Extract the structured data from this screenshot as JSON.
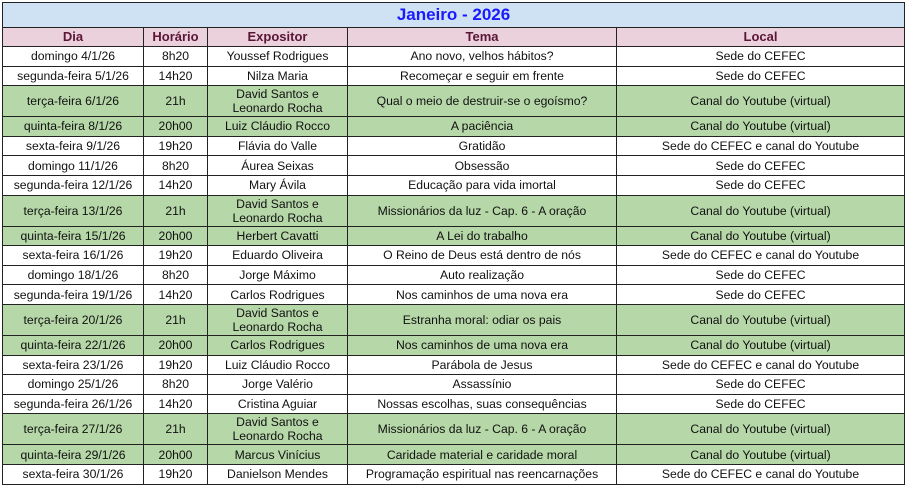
{
  "title": "Janeiro - 2026",
  "headers": {
    "dia": "Dia",
    "horario": "Horário",
    "expositor": "Expositor",
    "tema": "Tema",
    "local": "Local"
  },
  "colors": {
    "title_bg": "#cfe2f3",
    "title_text": "#1a1aff",
    "header_bg": "#ead1dc",
    "highlight_row": "#b6d7a8"
  },
  "rows": [
    {
      "dia": "domingo 4/1/26",
      "horario": "8h20",
      "expositor": "Youssef Rodrigues",
      "tema": "Ano novo, velhos hábitos?",
      "local": "Sede do CEFEC",
      "highlight": false
    },
    {
      "dia": "segunda-feira 5/1/26",
      "horario": "14h20",
      "expositor": "Nilza Maria",
      "tema": "Recomeçar e seguir em frente",
      "local": "Sede do CEFEC",
      "highlight": false
    },
    {
      "dia": "terça-feira 6/1/26",
      "horario": "21h",
      "expositor": "David Santos e Leonardo Rocha",
      "tema": "Qual o meio de destruir-se o egoísmo?",
      "local": "Canal do Youtube (virtual)",
      "highlight": true
    },
    {
      "dia": "quinta-feira 8/1/26",
      "horario": "20h00",
      "expositor": "Luiz Cláudio Rocco",
      "tema": "A paciência",
      "local": "Canal do Youtube (virtual)",
      "highlight": true
    },
    {
      "dia": "sexta-feira 9/1/26",
      "horario": "19h20",
      "expositor": "Flávia do Valle",
      "tema": "Gratidão",
      "local": "Sede do CEFEC e canal do Youtube",
      "highlight": false
    },
    {
      "dia": "domingo 11/1/26",
      "horario": "8h20",
      "expositor": "Áurea Seixas",
      "tema": "Obsessão",
      "local": "Sede do CEFEC",
      "highlight": false
    },
    {
      "dia": "segunda-feira 12/1/26",
      "horario": "14h20",
      "expositor": "Mary Ávila",
      "tema": "Educação para vida imortal",
      "local": "Sede do CEFEC",
      "highlight": false
    },
    {
      "dia": "terça-feira 13/1/26",
      "horario": "21h",
      "expositor": "David Santos e Leonardo Rocha",
      "tema": "Missionários da luz - Cap. 6  - A oração",
      "local": "Canal do Youtube (virtual)",
      "highlight": true
    },
    {
      "dia": "quinta-feira 15/1/26",
      "horario": "20h00",
      "expositor": "Herbert Cavatti",
      "tema": "A Lei do trabalho",
      "local": "Canal do Youtube (virtual)",
      "highlight": true
    },
    {
      "dia": "sexta-feira 16/1/26",
      "horario": "19h20",
      "expositor": "Eduardo Oliveira",
      "tema": "O Reino de Deus está dentro de nós",
      "local": "Sede do CEFEC e canal do Youtube",
      "highlight": false
    },
    {
      "dia": "domingo 18/1/26",
      "horario": "8h20",
      "expositor": "Jorge Máximo",
      "tema": "Auto realização",
      "local": "Sede do CEFEC",
      "highlight": false
    },
    {
      "dia": "segunda-feira 19/1/26",
      "horario": "14h20",
      "expositor": "Carlos Rodrigues",
      "tema": "Nos caminhos de uma nova era",
      "local": "Sede do CEFEC",
      "highlight": false
    },
    {
      "dia": "terça-feira 20/1/26",
      "horario": "21h",
      "expositor": "David Santos e Leonardo Rocha",
      "tema": "Estranha moral: odiar os pais",
      "local": "Canal do Youtube (virtual)",
      "highlight": true
    },
    {
      "dia": "quinta-feira 22/1/26",
      "horario": "20h00",
      "expositor": "Carlos Rodrigues",
      "tema": "Nos caminhos de uma nova era",
      "local": "Canal do Youtube (virtual)",
      "highlight": true
    },
    {
      "dia": "sexta-feira 23/1/26",
      "horario": "19h20",
      "expositor": "Luiz Cláudio Rocco",
      "tema": "Parábola de Jesus",
      "local": "Sede do CEFEC e canal do Youtube",
      "highlight": false
    },
    {
      "dia": "domingo 25/1/26",
      "horario": "8h20",
      "expositor": "Jorge Valério",
      "tema": "Assassínio",
      "local": "Sede do CEFEC",
      "highlight": false
    },
    {
      "dia": "segunda-feira 26/1/26",
      "horario": "14h20",
      "expositor": "Cristina Aguiar",
      "tema": "Nossas escolhas, suas consequências",
      "local": "Sede do CEFEC",
      "highlight": false
    },
    {
      "dia": "terça-feira 27/1/26",
      "horario": "21h",
      "expositor": "David Santos e Leonardo Rocha",
      "tema": "Missionários da luz - Cap. 6  - A oração",
      "local": "Canal do Youtube (virtual)",
      "highlight": true
    },
    {
      "dia": "quinta-feira 29/1/26",
      "horario": "20h00",
      "expositor": "Marcus Vinícius",
      "tema": "Caridade material e caridade moral",
      "local": "Canal do Youtube (virtual)",
      "highlight": true
    },
    {
      "dia": "sexta-feira 30/1/26",
      "horario": "19h20",
      "expositor": "Danielson Mendes",
      "tema": "Programação espiritual nas reencarnações",
      "local": "Sede do CEFEC e canal do Youtube",
      "highlight": false
    }
  ]
}
